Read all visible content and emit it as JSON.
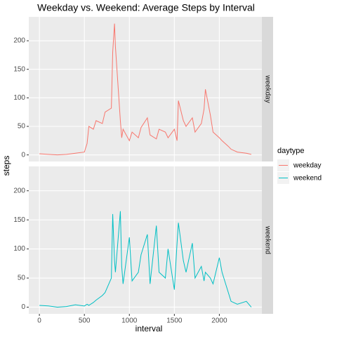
{
  "chart_data": {
    "type": "line",
    "title": "Weekday vs. Weekend: Average Steps by Interval",
    "xlabel": "interval",
    "ylabel": "steps",
    "legend_title": "daytype",
    "legend_position": "right",
    "grid": true,
    "x": [
      0,
      100,
      200,
      300,
      400,
      500,
      530,
      550,
      600,
      630,
      700,
      730,
      800,
      815,
      835,
      845,
      900,
      915,
      930,
      1000,
      1030,
      1100,
      1130,
      1200,
      1230,
      1300,
      1330,
      1400,
      1430,
      1500,
      1530,
      1545,
      1600,
      1630,
      1700,
      1730,
      1800,
      1830,
      1845,
      1900,
      1930,
      2000,
      2030,
      2100,
      2130,
      2200,
      2300,
      2355
    ],
    "series": [
      {
        "name": "weekday",
        "color": "#F8766D",
        "values": [
          2,
          1,
          0,
          1,
          3,
          5,
          20,
          50,
          45,
          60,
          55,
          75,
          82,
          180,
          230,
          190,
          60,
          30,
          45,
          25,
          40,
          30,
          48,
          65,
          35,
          28,
          45,
          40,
          30,
          45,
          25,
          95,
          60,
          50,
          65,
          40,
          55,
          80,
          115,
          70,
          40,
          30,
          25,
          15,
          10,
          5,
          3,
          1
        ]
      },
      {
        "name": "weekend",
        "color": "#00BFC4",
        "values": [
          3,
          2,
          0,
          1,
          4,
          2,
          5,
          3,
          8,
          12,
          20,
          25,
          50,
          160,
          80,
          60,
          165,
          70,
          40,
          120,
          45,
          60,
          90,
          125,
          40,
          140,
          60,
          50,
          100,
          30,
          110,
          145,
          80,
          60,
          110,
          50,
          70,
          45,
          60,
          50,
          40,
          85,
          60,
          25,
          10,
          5,
          10,
          0
        ]
      }
    ],
    "xlim": [
      -117.75,
      2472.75
    ],
    "xticks": [
      0,
      500,
      1000,
      1500,
      2000
    ],
    "ylim": [
      -11.5,
      241.9
    ],
    "yticks": [
      0,
      50,
      100,
      150,
      200
    ]
  }
}
